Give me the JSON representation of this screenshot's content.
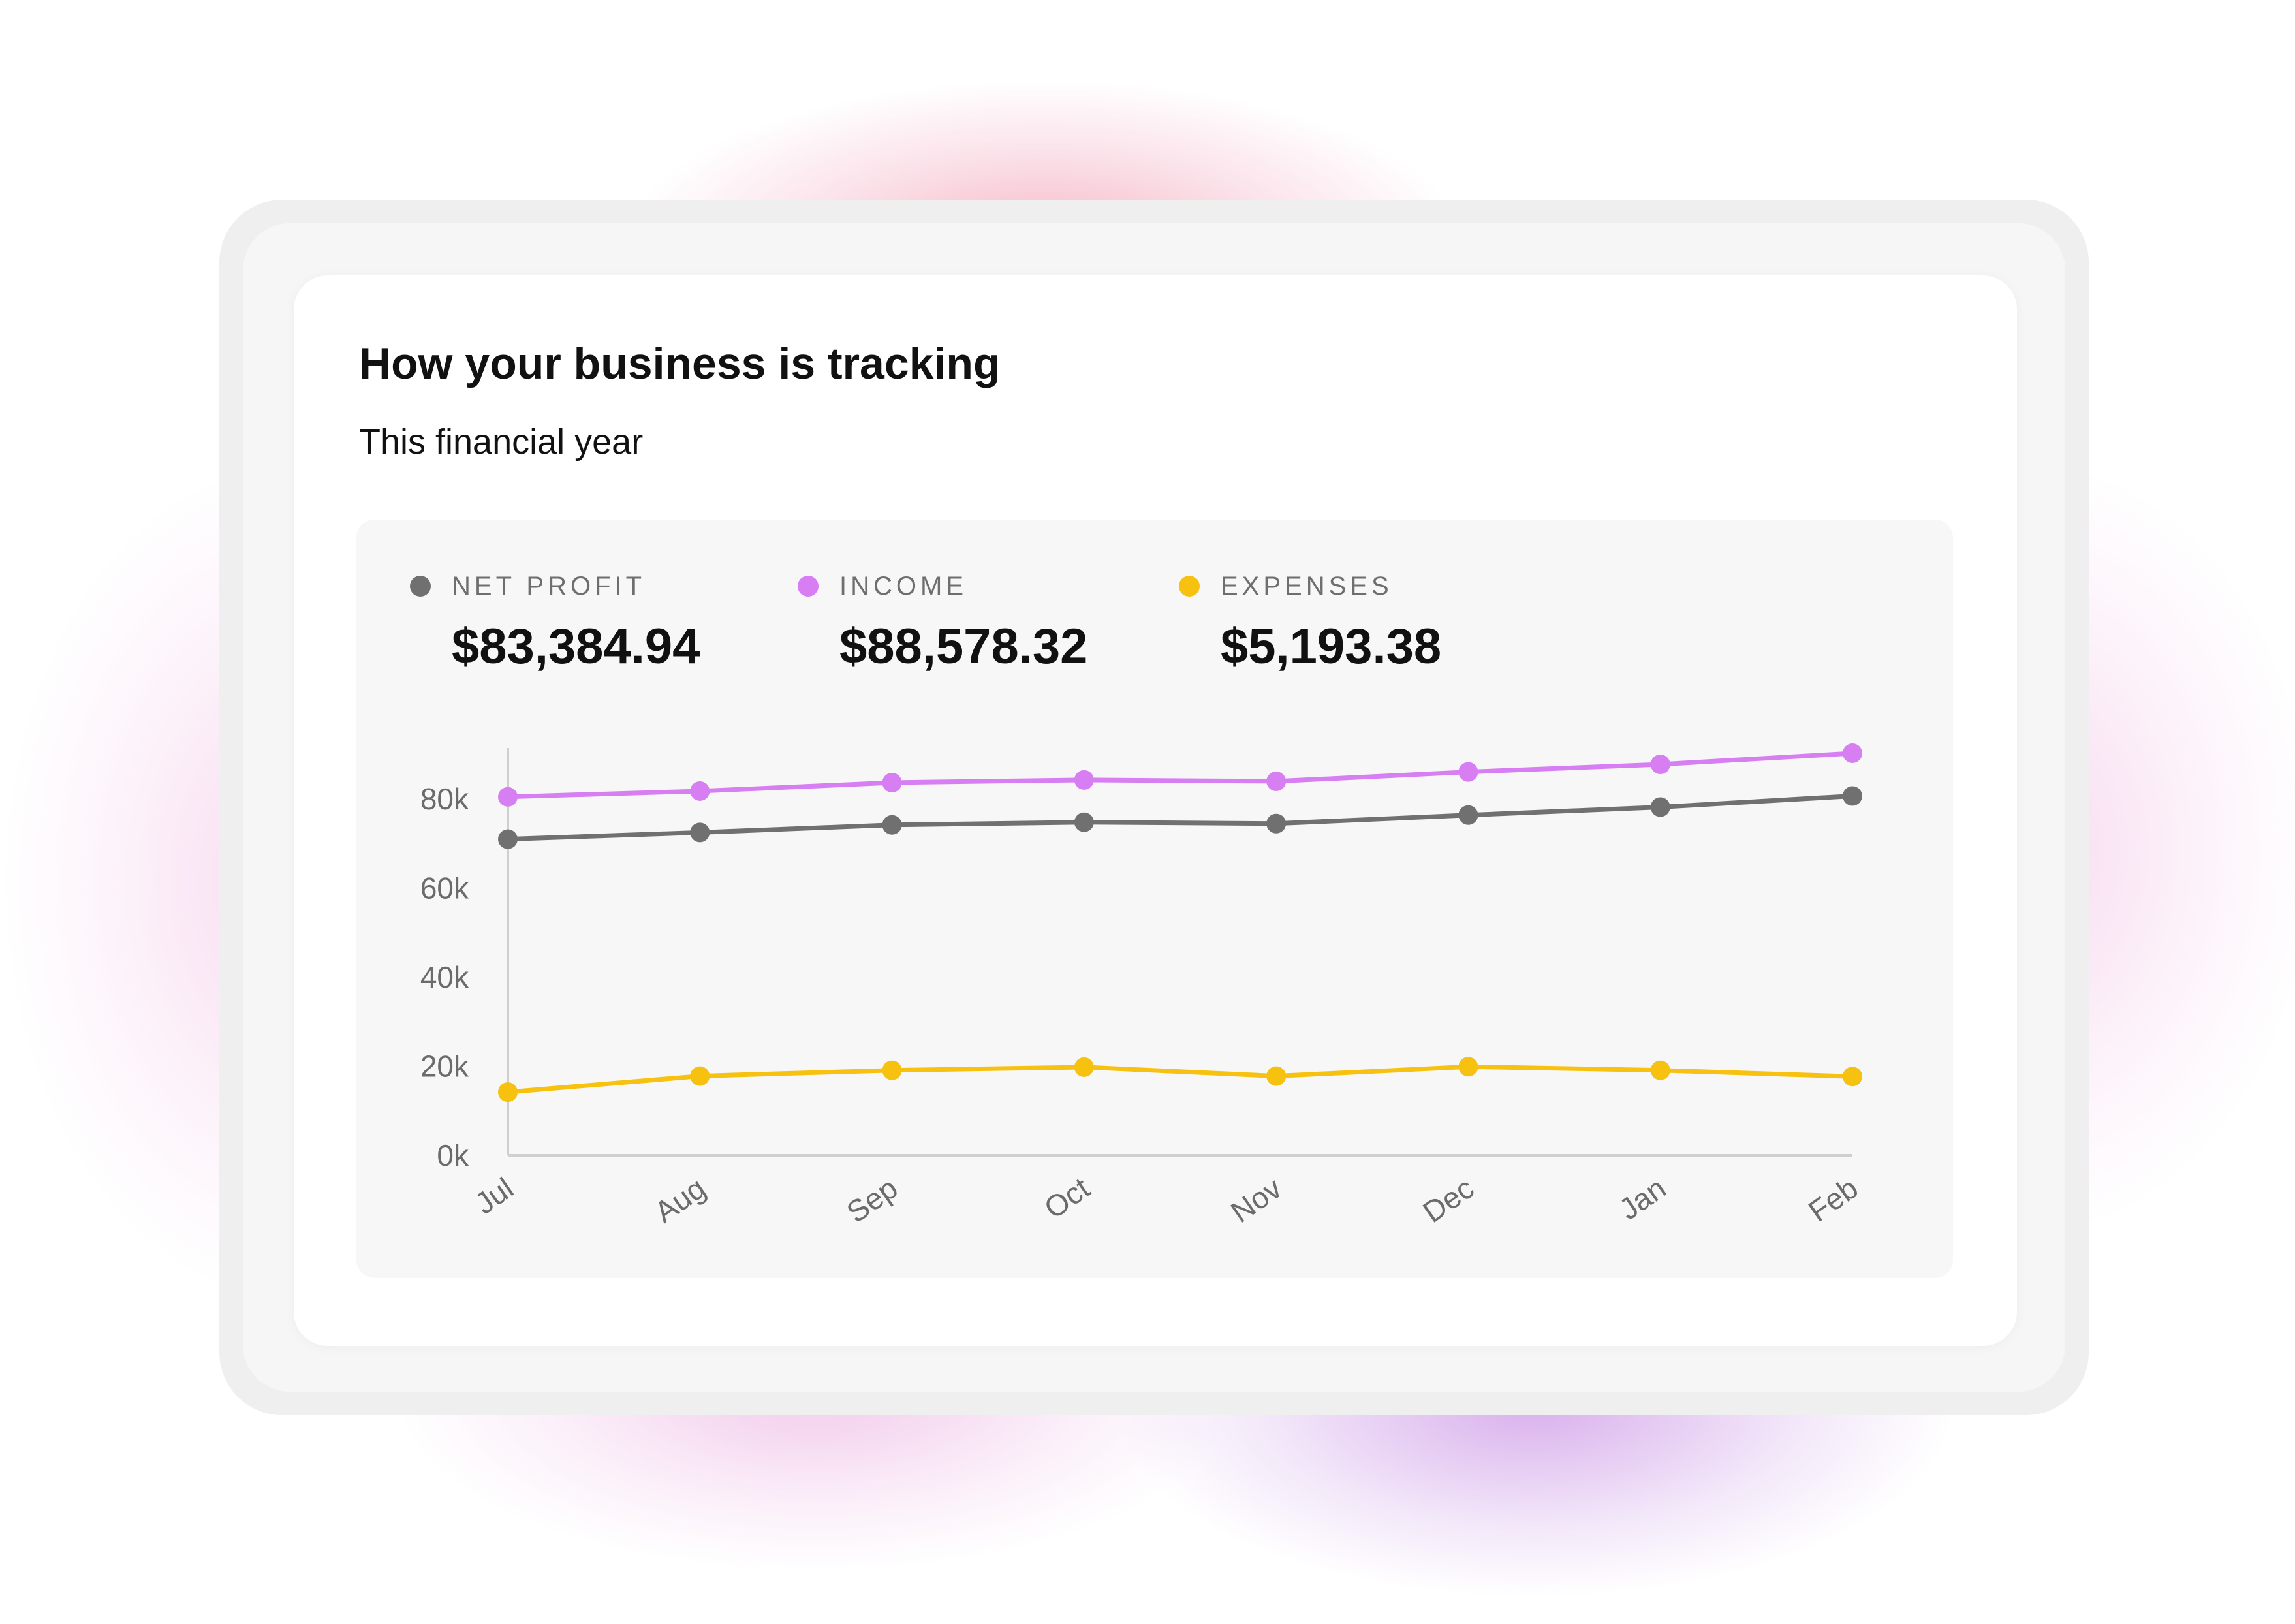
{
  "card": {
    "title": "How your business is tracking",
    "subtitle": "This financial year"
  },
  "metrics": [
    {
      "label": "NET PROFIT",
      "value": "$83,384.94",
      "color": "#707070"
    },
    {
      "label": "INCOME",
      "value": "$88,578.32",
      "color": "#d67ef2"
    },
    {
      "label": "EXPENSES",
      "value": "$5,193.38",
      "color": "#f7c10f"
    }
  ],
  "colors": {
    "net_profit": "#707070",
    "income": "#d67ef2",
    "expenses": "#f7c10f",
    "axis": "#cfcfcf"
  },
  "chart_data": {
    "type": "line",
    "categories": [
      "Jul",
      "Aug",
      "Sep",
      "Oct",
      "Nov",
      "Dec",
      "Jan",
      "Feb"
    ],
    "y_ticks": [
      "0k",
      "20k",
      "40k",
      "60k",
      "80k"
    ],
    "ylim": [
      0,
      90000
    ],
    "grid": false,
    "x_tick_rotation": -35,
    "series": [
      {
        "name": "INCOME",
        "color": "#d67ef2",
        "values": [
          80500,
          81800,
          83700,
          84300,
          84000,
          86100,
          87800,
          90300
        ]
      },
      {
        "name": "NET PROFIT",
        "color": "#707070",
        "values": [
          71000,
          72500,
          74200,
          74800,
          74500,
          76400,
          78200,
          80700
        ]
      },
      {
        "name": "EXPENSES",
        "color": "#f7c10f",
        "values": [
          14200,
          17800,
          19100,
          19800,
          17800,
          19900,
          19100,
          17700
        ]
      }
    ]
  }
}
